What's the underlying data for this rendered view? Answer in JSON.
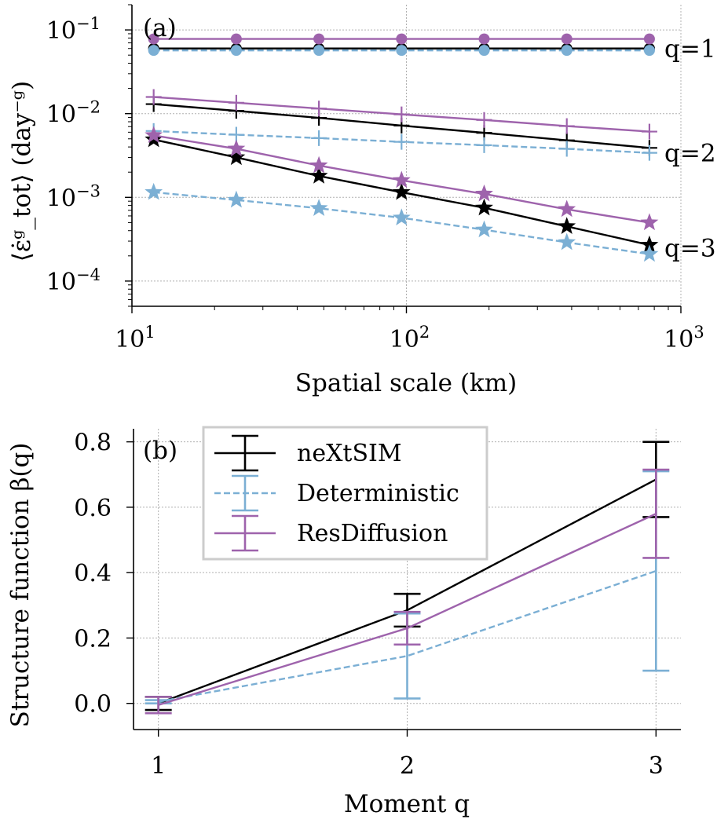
{
  "colors": {
    "nextsim": "#000000",
    "deterministic": "#7bafd4",
    "resdiffusion": "#9e63ac",
    "grid": "#b0b0b0",
    "legend_border": "#cccccc"
  },
  "chart_data": [
    {
      "type": "line",
      "panel_tag": "(a)",
      "xlabel": "Spatial scale (km)",
      "ylabel": "⟨ε̇ᵍ_tot⟩ (day⁻ᵍ)",
      "xscale": "log",
      "yscale": "log",
      "xlim": [
        10,
        1000
      ],
      "ylim": [
        5e-05,
        0.2
      ],
      "x_ticks": [
        {
          "value": 10,
          "base": "10",
          "exp": "1"
        },
        {
          "value": 100,
          "base": "10",
          "exp": "2"
        },
        {
          "value": 1000,
          "base": "10",
          "exp": "3"
        }
      ],
      "y_ticks": [
        {
          "value": 0.1,
          "base": "10",
          "exp": "−1"
        },
        {
          "value": 0.01,
          "base": "10",
          "exp": "−2"
        },
        {
          "value": 0.001,
          "base": "10",
          "exp": "−3"
        },
        {
          "value": 0.0001,
          "base": "10",
          "exp": "−4"
        }
      ],
      "grid": true,
      "x": [
        12,
        24,
        48,
        96,
        192,
        384,
        768
      ],
      "series": [
        {
          "model": "nextsim",
          "moment": "q=1",
          "marker": "circle",
          "dash": false,
          "values": [
            0.06,
            0.06,
            0.06,
            0.06,
            0.06,
            0.06,
            0.06
          ]
        },
        {
          "model": "deterministic",
          "moment": "q=1",
          "marker": "circle",
          "dash": true,
          "values": [
            0.057,
            0.057,
            0.057,
            0.057,
            0.057,
            0.057,
            0.057
          ]
        },
        {
          "model": "resdiffusion",
          "moment": "q=1",
          "marker": "circle",
          "dash": false,
          "values": [
            0.078,
            0.078,
            0.078,
            0.078,
            0.078,
            0.078,
            0.078
          ]
        },
        {
          "model": "nextsim",
          "moment": "q=2",
          "marker": "plus",
          "dash": false,
          "values": [
            0.013,
            0.0108,
            0.0089,
            0.0072,
            0.0059,
            0.0048,
            0.0039
          ]
        },
        {
          "model": "deterministic",
          "moment": "q=2",
          "marker": "plus",
          "dash": true,
          "values": [
            0.0062,
            0.0056,
            0.0051,
            0.0046,
            0.0042,
            0.0038,
            0.0034
          ]
        },
        {
          "model": "resdiffusion",
          "moment": "q=2",
          "marker": "plus",
          "dash": false,
          "values": [
            0.0158,
            0.0135,
            0.0115,
            0.0098,
            0.0084,
            0.0071,
            0.0061
          ]
        },
        {
          "model": "nextsim",
          "moment": "q=3",
          "marker": "star",
          "dash": false,
          "values": [
            0.0049,
            0.003,
            0.0018,
            0.00115,
            0.00075,
            0.00045,
            0.00027
          ]
        },
        {
          "model": "deterministic",
          "moment": "q=3",
          "marker": "star",
          "dash": true,
          "values": [
            0.00115,
            0.00093,
            0.00074,
            0.00057,
            0.00041,
            0.00029,
            0.00021
          ]
        },
        {
          "model": "resdiffusion",
          "moment": "q=3",
          "marker": "star",
          "dash": false,
          "values": [
            0.0055,
            0.0038,
            0.0024,
            0.0016,
            0.0011,
            0.00072,
            0.0005
          ]
        }
      ],
      "annotations": [
        {
          "text": "q=1",
          "y": 0.06
        },
        {
          "text": "q=2",
          "y": 0.0034
        },
        {
          "text": "q=3",
          "y": 0.00025
        }
      ]
    },
    {
      "type": "line",
      "panel_tag": "(b)",
      "xlabel": "Moment q",
      "ylabel": "Structure function β(q)",
      "xlim": [
        0.9,
        3.1
      ],
      "ylim": [
        -0.08,
        0.84
      ],
      "x_ticks": [
        1,
        2,
        3
      ],
      "y_ticks": [
        "0.0",
        "0.2",
        "0.4",
        "0.6",
        "0.8"
      ],
      "grid": true,
      "legend_position": "top-left",
      "x": [
        1,
        2,
        3
      ],
      "series": [
        {
          "model": "nextsim",
          "name": "neXtSIM",
          "dash": false,
          "values": [
            0.0,
            0.285,
            0.685
          ],
          "err": [
            0.02,
            0.05,
            0.115
          ]
        },
        {
          "model": "deterministic",
          "name": "Deterministic",
          "dash": true,
          "values": [
            0.005,
            0.145,
            0.405
          ],
          "err": [
            0.005,
            0.13,
            0.305
          ]
        },
        {
          "model": "resdiffusion",
          "name": "ResDiffusion",
          "dash": false,
          "values": [
            -0.005,
            0.23,
            0.58
          ],
          "err": [
            0.025,
            0.05,
            0.135
          ]
        }
      ]
    }
  ]
}
